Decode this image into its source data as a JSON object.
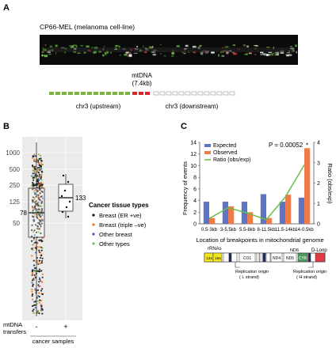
{
  "panelA": {
    "label": "A",
    "cell_line": "CP66-MEL (melanoma cell-line)",
    "mtdna_label": "mtDNA",
    "mtdna_size": "(7.4kb)",
    "upstream_label": "chr3 (upstream)",
    "downstream_label": "chr3 (downstream)",
    "colors": {
      "upstream": "#7ab53a",
      "mtdna": "#d7262c",
      "downstream": "#999999"
    }
  },
  "panelB": {
    "label": "B",
    "y_ticks": [
      "1000",
      "500",
      "250",
      "125",
      "50"
    ],
    "median_left": "78",
    "median_right": "133",
    "x_row_label_1": "mtDNA",
    "x_row_label_2": "transfers",
    "x_tick_minus": "-",
    "x_tick_plus": "+",
    "x_caption": "cancer samples",
    "legend_title": "Cancer tissue types",
    "legend": [
      {
        "label": "Breast (ER +ve)",
        "color": "#111111"
      },
      {
        "label": "Breast (triple –ve)",
        "color": "#e8742c"
      },
      {
        "label": "Other breast",
        "color": "#3a5fbf"
      },
      {
        "label": "Other types",
        "color": "#6abf4b"
      }
    ]
  },
  "panelC": {
    "label": "C",
    "legend": [
      {
        "label": "Expected",
        "color": "#5b74c4"
      },
      {
        "label": "Observed",
        "color": "#ee7c4a"
      },
      {
        "label": "Ratio (obs/exp)",
        "color": "#6abf4b"
      }
    ],
    "pvalue": "P = 0.00052",
    "star": "*",
    "ylabel_left": "Frequency of events",
    "ylabel_right": "Ratio (obs/exp)",
    "xlabel": "Location of breakpoints in mitochondrial genome",
    "map_labels": {
      "rrnas": "rRNAs",
      "s12": "12s",
      "s16": "16s",
      "co1": "CO1",
      "nd4": "ND4",
      "nd5": "ND5",
      "nd6": "ND6",
      "cyb": "CYB",
      "dloop": "D-Loop",
      "rep_l_1": "Replication origin",
      "rep_l_2": "( L strand)",
      "rep_h_1": "Replication origin",
      "rep_h_2": "( H strand)"
    }
  },
  "chart_data": {
    "type": "bar",
    "categories": [
      "0.5-3kb",
      "3-5.5kb",
      "5.5-8kb",
      "8-11.5kb",
      "11.5-14kb",
      "14-0.5kb"
    ],
    "series": [
      {
        "name": "Expected",
        "values": [
          3.8,
          3.8,
          3.8,
          5.1,
          3.8,
          4.5
        ]
      },
      {
        "name": "Observed",
        "values": [
          1,
          3,
          2,
          1,
          5,
          13
        ]
      },
      {
        "name": "Ratio (obs/exp)",
        "axis": "right",
        "values": [
          0.26,
          0.79,
          0.53,
          0.2,
          1.32,
          2.89
        ]
      }
    ],
    "ylim": [
      0,
      14
    ],
    "y_ticks": [
      0,
      2,
      4,
      6,
      8,
      10,
      12,
      14
    ],
    "ylim_right": [
      0,
      4
    ],
    "y_ticks_right": [
      0,
      1,
      2,
      3,
      4
    ],
    "grid": false
  }
}
